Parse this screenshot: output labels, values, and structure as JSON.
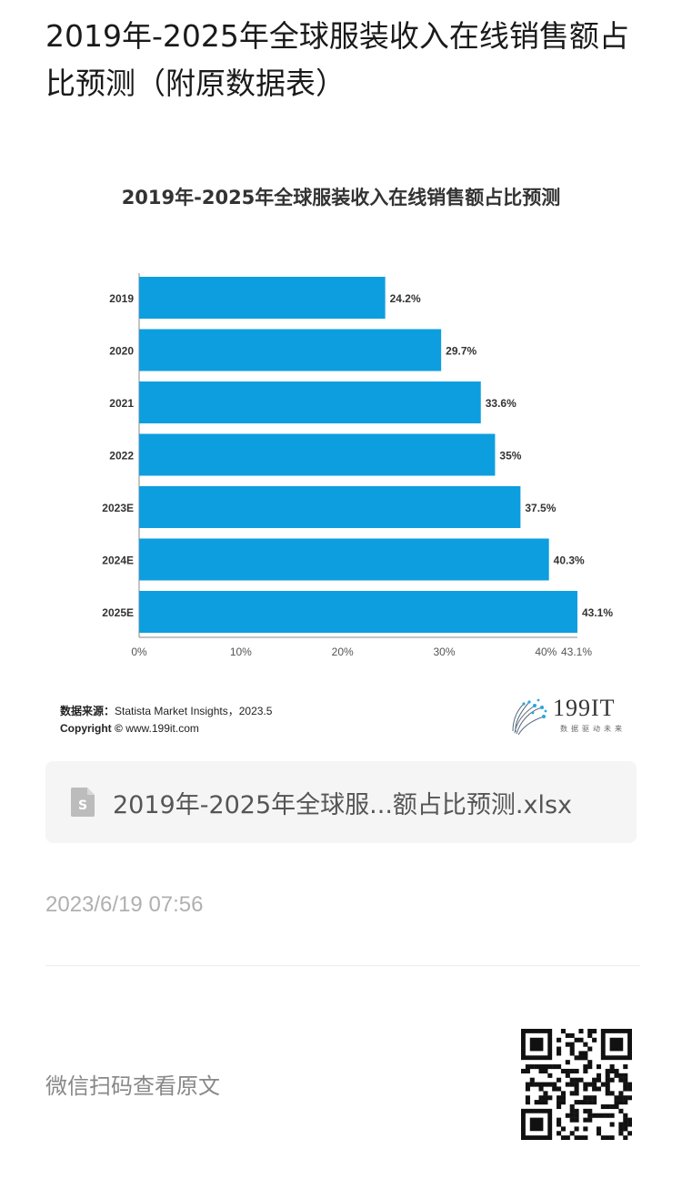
{
  "article": {
    "title": "2019年-2025年全球服装收入在线销售额占比预测（附原数据表）"
  },
  "chart_data": {
    "type": "bar",
    "orientation": "horizontal",
    "title": "2019年-2025年全球服装收入在线销售额占比预测",
    "categories": [
      "2019",
      "2020",
      "2021",
      "2022",
      "2023E",
      "2024E",
      "2025E"
    ],
    "values": [
      24.2,
      29.7,
      33.6,
      35,
      37.5,
      40.3,
      43.1
    ],
    "value_labels": [
      "24.2%",
      "29.7%",
      "33.6%",
      "35%",
      "37.5%",
      "40.3%",
      "43.1%"
    ],
    "x_ticks": [
      "0%",
      "10%",
      "20%",
      "30%",
      "40%",
      "43.1%"
    ],
    "x_tick_values": [
      0,
      10,
      20,
      30,
      40,
      43.1
    ],
    "xlim": [
      0,
      43.1
    ],
    "bar_color": "#0d9ee0",
    "grid": false,
    "legend": "none"
  },
  "chart_footer": {
    "source_label": "数据来源：",
    "source_text": "Statista Market Insights，2023.5",
    "copyright_label": "Copyright ©",
    "copyright_text": "www.199it.com"
  },
  "logo": {
    "text": "199IT",
    "subtitle": "数据驱动未来",
    "icon": "dandelion-logo-icon"
  },
  "attachment": {
    "icon": "spreadsheet-file-icon",
    "icon_color": "#bcbcbc",
    "filename": "2019年-2025年全球服...额占比预测.xlsx"
  },
  "meta": {
    "timestamp": "2023/6/19 07:56"
  },
  "footer": {
    "scan_text": "微信扫码查看原文",
    "qr_icon": "qr-code-icon"
  }
}
